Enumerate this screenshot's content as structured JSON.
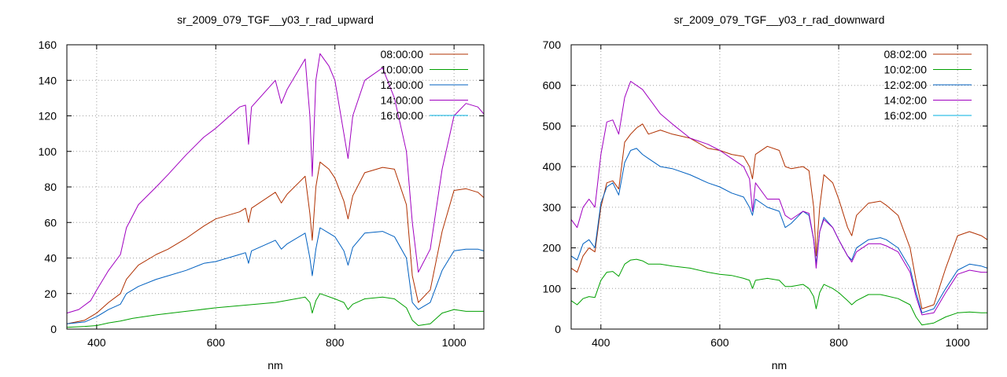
{
  "chart_data": [
    {
      "type": "line",
      "title": "sr_2009_079_TGF__y03_r_rad_upward",
      "xlabel": "nm",
      "ylabel": "",
      "xlim": [
        350,
        1050
      ],
      "ylim": [
        0,
        160
      ],
      "xticks": [
        400,
        600,
        800,
        1000
      ],
      "yticks": [
        0,
        20,
        40,
        60,
        80,
        100,
        120,
        140,
        160
      ],
      "grid": true,
      "legend_position": "top-right",
      "series": [
        {
          "name": "08:00:00",
          "color": "#b03000",
          "x": [
            350,
            380,
            400,
            420,
            440,
            450,
            470,
            500,
            520,
            550,
            580,
            600,
            640,
            650,
            655,
            660,
            700,
            710,
            720,
            750,
            758,
            762,
            768,
            775,
            790,
            800,
            815,
            822,
            830,
            850,
            880,
            900,
            920,
            930,
            940,
            960,
            980,
            1000,
            1020,
            1040,
            1050
          ],
          "y": [
            3,
            5,
            9,
            15,
            20,
            28,
            36,
            42,
            45,
            51,
            58,
            62,
            66,
            68,
            60,
            68,
            77,
            71,
            76,
            86,
            65,
            50,
            80,
            94,
            90,
            85,
            72,
            62,
            75,
            88,
            91,
            90,
            70,
            30,
            15,
            22,
            55,
            78,
            79,
            77,
            74
          ]
        },
        {
          "name": "10:00:00",
          "color": "#00a000",
          "x": [
            350,
            380,
            400,
            420,
            440,
            460,
            500,
            550,
            600,
            650,
            700,
            750,
            758,
            762,
            768,
            775,
            800,
            815,
            822,
            830,
            850,
            880,
            900,
            920,
            930,
            940,
            960,
            980,
            1000,
            1020,
            1040,
            1050
          ],
          "y": [
            1,
            1.5,
            2,
            3.5,
            4.5,
            6,
            8,
            10,
            12,
            13.5,
            15,
            18,
            15,
            9,
            16,
            20,
            17,
            15,
            11,
            14,
            17,
            18,
            17,
            12,
            5,
            2,
            3,
            9,
            11,
            10,
            10,
            10
          ]
        },
        {
          "name": "12:00:00",
          "color": "#0060c0",
          "x": [
            350,
            380,
            400,
            420,
            440,
            450,
            470,
            500,
            520,
            550,
            580,
            600,
            640,
            650,
            655,
            660,
            700,
            710,
            720,
            750,
            758,
            762,
            768,
            775,
            790,
            800,
            815,
            822,
            830,
            850,
            880,
            900,
            920,
            930,
            940,
            960,
            980,
            1000,
            1020,
            1040,
            1050
          ],
          "y": [
            3,
            4,
            7,
            11,
            14,
            20,
            24,
            28,
            30,
            33,
            37,
            38,
            42,
            43,
            37,
            44,
            50,
            45,
            48,
            54,
            40,
            30,
            45,
            57,
            54,
            52,
            44,
            36,
            46,
            54,
            55,
            52,
            40,
            15,
            11,
            15,
            33,
            44,
            45,
            45,
            44
          ]
        },
        {
          "name": "14:00:00",
          "color": "#a000c0",
          "x": [
            350,
            370,
            390,
            400,
            420,
            440,
            450,
            470,
            500,
            520,
            550,
            580,
            600,
            640,
            650,
            655,
            660,
            700,
            710,
            720,
            750,
            758,
            762,
            768,
            775,
            790,
            800,
            815,
            822,
            830,
            850,
            880,
            900,
            920,
            930,
            940,
            960,
            980,
            1000,
            1020,
            1040,
            1050
          ],
          "y": [
            9,
            11,
            16,
            22,
            33,
            42,
            57,
            70,
            80,
            87,
            98,
            108,
            113,
            125,
            126,
            104,
            125,
            140,
            127,
            135,
            152,
            120,
            86,
            140,
            155,
            148,
            140,
            110,
            96,
            120,
            140,
            147,
            130,
            100,
            60,
            32,
            45,
            90,
            120,
            127,
            125,
            121
          ]
        },
        {
          "name": "16:00:00",
          "color": "#00b0e0",
          "x": [],
          "y": []
        }
      ]
    },
    {
      "type": "line",
      "title": "sr_2009_079_TGF__y03_r_rad_downward",
      "xlabel": "nm",
      "ylabel": "",
      "xlim": [
        350,
        1050
      ],
      "ylim": [
        0,
        700
      ],
      "xticks": [
        400,
        600,
        800,
        1000
      ],
      "yticks": [
        0,
        100,
        200,
        300,
        400,
        500,
        600,
        700
      ],
      "grid": true,
      "legend_position": "top-right",
      "series": [
        {
          "name": "08:02:00",
          "color": "#b03000",
          "x": [
            350,
            360,
            370,
            380,
            390,
            400,
            410,
            420,
            430,
            440,
            450,
            460,
            470,
            480,
            500,
            520,
            550,
            580,
            600,
            620,
            640,
            650,
            655,
            660,
            680,
            700,
            710,
            720,
            740,
            750,
            758,
            762,
            768,
            775,
            790,
            800,
            815,
            822,
            830,
            850,
            870,
            880,
            900,
            920,
            930,
            940,
            960,
            980,
            1000,
            1020,
            1040,
            1050
          ],
          "y": [
            150,
            140,
            180,
            200,
            190,
            300,
            360,
            365,
            345,
            460,
            480,
            495,
            505,
            480,
            490,
            480,
            470,
            445,
            440,
            430,
            425,
            400,
            370,
            430,
            450,
            440,
            400,
            395,
            400,
            390,
            300,
            180,
            300,
            380,
            360,
            320,
            250,
            230,
            280,
            310,
            315,
            305,
            280,
            200,
            120,
            50,
            60,
            150,
            230,
            240,
            230,
            220
          ]
        },
        {
          "name": "10:02:00",
          "color": "#00a000",
          "x": [
            350,
            360,
            370,
            380,
            390,
            400,
            410,
            420,
            430,
            440,
            450,
            460,
            470,
            480,
            500,
            520,
            550,
            580,
            600,
            620,
            640,
            650,
            655,
            660,
            680,
            700,
            710,
            720,
            740,
            750,
            758,
            762,
            768,
            775,
            790,
            800,
            815,
            822,
            830,
            850,
            870,
            880,
            900,
            920,
            930,
            940,
            960,
            980,
            1000,
            1020,
            1040,
            1050
          ],
          "y": [
            70,
            60,
            75,
            80,
            78,
            120,
            140,
            142,
            130,
            160,
            170,
            172,
            168,
            160,
            160,
            155,
            150,
            140,
            135,
            132,
            125,
            120,
            100,
            120,
            125,
            120,
            105,
            105,
            110,
            100,
            80,
            50,
            90,
            110,
            100,
            90,
            70,
            60,
            70,
            85,
            85,
            82,
            75,
            60,
            30,
            10,
            15,
            30,
            40,
            42,
            40,
            40
          ]
        },
        {
          "name": "12:02:00",
          "color": "#0060c0",
          "x": [
            350,
            360,
            370,
            380,
            390,
            400,
            410,
            420,
            430,
            440,
            450,
            460,
            470,
            480,
            500,
            520,
            550,
            580,
            600,
            620,
            640,
            650,
            655,
            660,
            680,
            700,
            710,
            720,
            740,
            750,
            758,
            762,
            768,
            775,
            790,
            800,
            815,
            822,
            830,
            850,
            870,
            880,
            900,
            920,
            930,
            940,
            960,
            980,
            1000,
            1020,
            1040,
            1050
          ],
          "y": [
            180,
            170,
            210,
            220,
            200,
            310,
            350,
            360,
            330,
            410,
            440,
            445,
            430,
            420,
            400,
            395,
            380,
            360,
            350,
            335,
            325,
            300,
            280,
            320,
            300,
            290,
            250,
            260,
            290,
            280,
            220,
            160,
            240,
            275,
            250,
            220,
            180,
            170,
            200,
            220,
            225,
            220,
            200,
            150,
            90,
            40,
            50,
            100,
            145,
            160,
            155,
            150
          ]
        },
        {
          "name": "14:02:00",
          "color": "#a000c0",
          "x": [
            350,
            360,
            370,
            380,
            390,
            400,
            410,
            420,
            430,
            440,
            450,
            460,
            470,
            480,
            500,
            520,
            550,
            580,
            600,
            620,
            640,
            650,
            655,
            660,
            680,
            700,
            710,
            720,
            740,
            750,
            758,
            762,
            768,
            775,
            790,
            800,
            815,
            822,
            830,
            850,
            870,
            880,
            900,
            920,
            930,
            940,
            960,
            980,
            1000,
            1020,
            1040,
            1050
          ],
          "y": [
            270,
            250,
            300,
            320,
            300,
            430,
            510,
            515,
            480,
            570,
            610,
            600,
            590,
            570,
            530,
            505,
            470,
            455,
            440,
            420,
            400,
            370,
            290,
            360,
            320,
            320,
            280,
            270,
            290,
            285,
            220,
            150,
            240,
            270,
            250,
            220,
            180,
            165,
            190,
            210,
            210,
            205,
            190,
            140,
            80,
            35,
            40,
            90,
            135,
            145,
            140,
            140
          ]
        },
        {
          "name": "16:02:00",
          "color": "#00b0e0",
          "x": [],
          "y": []
        }
      ]
    }
  ]
}
